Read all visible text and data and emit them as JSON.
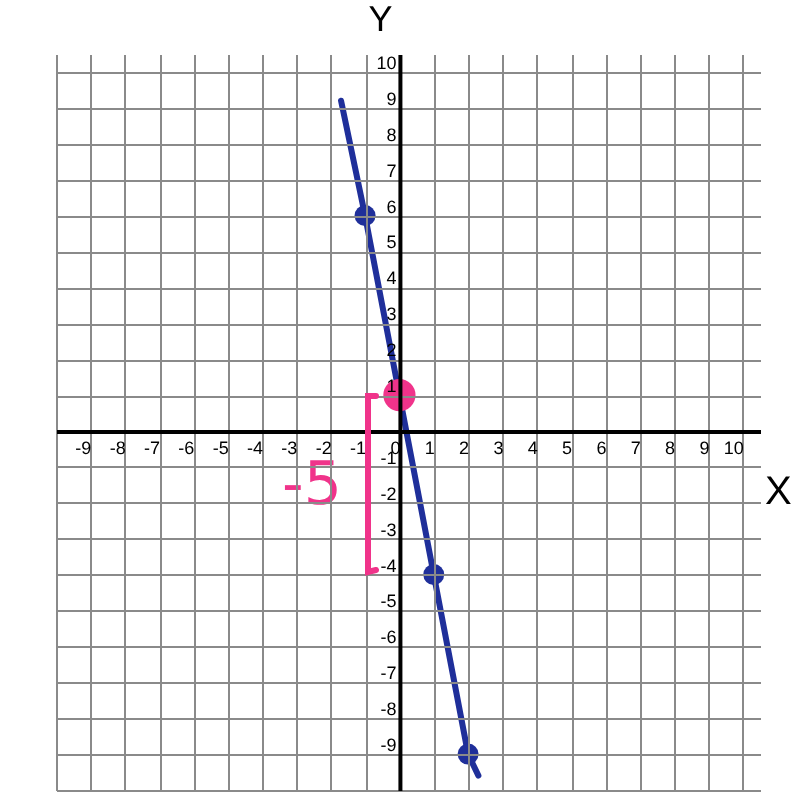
{
  "chart_data": {
    "type": "line",
    "xlabel": "X",
    "ylabel": "Y",
    "xlim": [
      -10,
      10.5
    ],
    "ylim": [
      -10,
      10.5
    ],
    "xticks": [
      {
        "value": -10,
        "label": null
      },
      -9,
      -8,
      -7,
      -6,
      -5,
      -4,
      -3,
      -2,
      -1,
      0,
      1,
      2,
      3,
      4,
      5,
      6,
      7,
      8,
      9,
      10
    ],
    "yticks": [
      {
        "value": -10,
        "label": null
      },
      -9,
      -8,
      -7,
      -6,
      -5,
      -4,
      -3,
      -2,
      -1,
      {
        "value": 0,
        "label": null
      },
      1,
      2,
      3,
      4,
      5,
      6,
      7,
      8,
      9,
      10
    ],
    "grid": true,
    "marker": "circle",
    "series": [
      {
        "marker": "none",
        "color": "#1f2f9a",
        "x": [
          -1.7,
          -1,
          0,
          1,
          2,
          2.3
        ],
        "values": [
          9.2,
          6,
          1,
          -4,
          -9,
          -9.6
        ]
      },
      {
        "type": "scatter",
        "color": "#1f2f9a",
        "x": [
          -1,
          1,
          2
        ],
        "values": [
          6,
          -4,
          -9
        ]
      },
      {
        "type": "scatter",
        "color": "#f0338a",
        "x": [
          0
        ],
        "values": [
          1
        ]
      }
    ],
    "annotations": [
      "-5"
    ]
  }
}
